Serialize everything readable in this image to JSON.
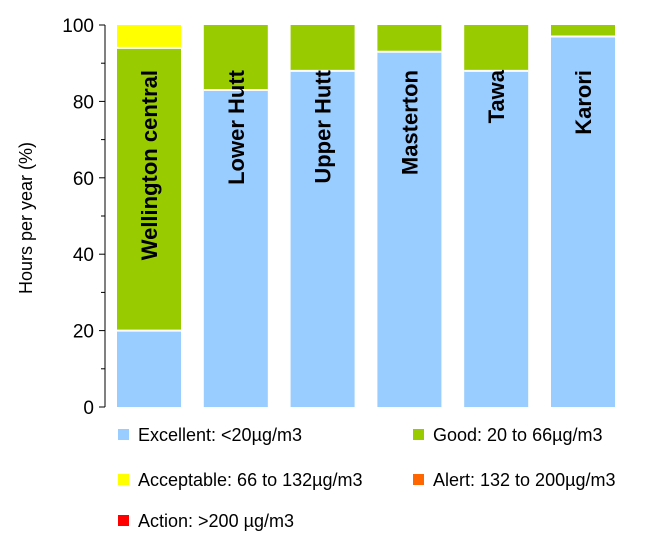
{
  "chart_data": {
    "type": "bar",
    "stacked": true,
    "categories": [
      "Wellington central",
      "Lower Hutt",
      "Upper Hutt",
      "Masterton",
      "Tawa",
      "Karori"
    ],
    "series": [
      {
        "name": "Excellent: <20µg/m3",
        "color": "#99ccff",
        "values": [
          20,
          83,
          88,
          93,
          88,
          97
        ]
      },
      {
        "name": "Good: 20 to 66µg/m3",
        "color": "#99cc00",
        "values": [
          74,
          17,
          12,
          7,
          12,
          3
        ]
      },
      {
        "name": "Acceptable: 66 to 132µg/m3",
        "color": "#ffff00",
        "values": [
          6,
          0,
          0,
          0,
          0,
          0
        ]
      },
      {
        "name": "Alert: 132 to 200µg/m3",
        "color": "#ff6600",
        "values": [
          0,
          0,
          0,
          0,
          0,
          0
        ]
      },
      {
        "name": "Action: >200 µg/m3",
        "color": "#ff0000",
        "values": [
          0,
          0,
          0,
          0,
          0,
          0
        ]
      }
    ],
    "ylabel": "Hours per year (%)",
    "ylim": [
      0,
      100
    ],
    "yticks": [
      0,
      20,
      40,
      60,
      80,
      100
    ],
    "grid": false,
    "legend_position": "bottom",
    "category_labels_inside_bars": true
  }
}
